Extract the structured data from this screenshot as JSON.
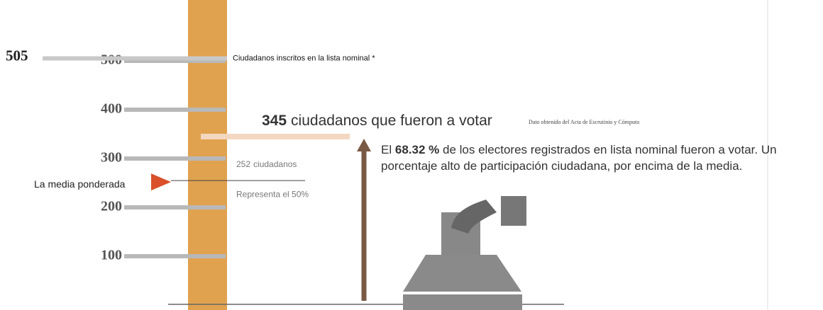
{
  "scale": {
    "ticks": [
      100,
      200,
      300,
      400,
      500
    ]
  },
  "total": {
    "value": 505,
    "label": "Ciudadanos inscritos en la lista nominal *"
  },
  "voters": {
    "value": 345,
    "label": "ciudadanos que fueron a votar",
    "note": "Dato obtenido del Acta de Escrutinio y Cómputo"
  },
  "mean": {
    "label": "La media ponderada",
    "value": 252,
    "unit": "ciudadanos",
    "share": "Representa el 50%"
  },
  "summary": {
    "before": "El",
    "percent": "68.32 %",
    "after": "de los electores registrados en lista nominal  fueron a votar. Un porcentaje alto de participación ciudadana, por encima de la media."
  }
}
